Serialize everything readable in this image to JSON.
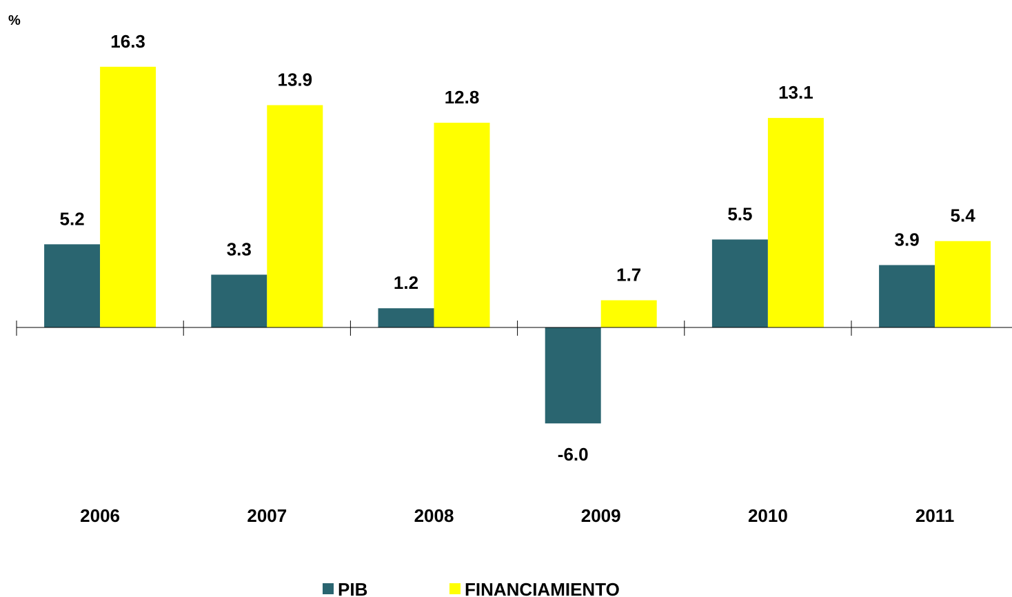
{
  "chart_data": {
    "type": "bar",
    "y_label": "%",
    "categories": [
      "2006",
      "2007",
      "2008",
      "2009",
      "2010",
      "2011"
    ],
    "series": [
      {
        "name": "PIB",
        "color": "#2a6570",
        "values": [
          5.2,
          3.3,
          1.2,
          -6.0,
          5.5,
          3.9
        ],
        "value_labels": [
          "5.2",
          "3.3",
          "1.2",
          "-6.0",
          "5.5",
          "3.9"
        ]
      },
      {
        "name": "FINANCIAMIENTO",
        "color": "#ffff00",
        "values": [
          16.3,
          13.9,
          12.8,
          1.7,
          13.1,
          5.4
        ],
        "value_labels": [
          "16.3",
          "13.9",
          "12.8",
          "1.7",
          "13.1",
          "5.4"
        ]
      }
    ],
    "ylim": [
      -10,
      20
    ],
    "grid": false,
    "legend": "bottom"
  }
}
